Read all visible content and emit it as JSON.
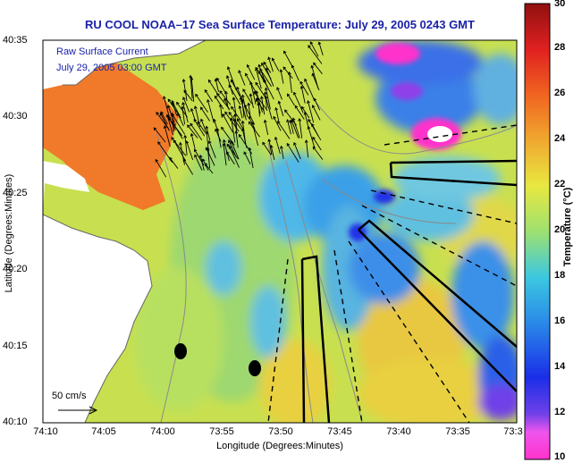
{
  "title": "RU COOL  NOAA–17  Sea Surface Temperature:  July 29, 2005 0243 GMT",
  "legend": {
    "line1": "Raw Surface Current",
    "line2": "July 29, 2005 03:00 GMT"
  },
  "axes": {
    "ylabel": "Latitude (Degrees:Minutes)",
    "xlabel": "Longitude (Degrees:Minutes)",
    "yticks": [
      "40:35",
      "40:30",
      "40:25",
      "40:20",
      "40:15",
      "40:10"
    ],
    "xticks": [
      "74:10",
      "74:05",
      "74:00",
      "73:55",
      "73:50",
      "73:45",
      "73:40",
      "73:35",
      "73:3"
    ]
  },
  "colorbar": {
    "label": "Temperature (°C)",
    "ticks": [
      "30",
      "28",
      "26",
      "24",
      "22",
      "20",
      "18",
      "16",
      "14",
      "12",
      "10"
    ],
    "range": [
      10,
      30
    ]
  },
  "scale_label": "50 cm/s",
  "colors": {
    "title": "#1a22a8",
    "land": "#ffffff",
    "warm_water": "#f07a2a",
    "mid_water": "#d6e84a",
    "cool_water": "#4db4e0",
    "cold_water": "#2e3ee0",
    "coldest": "#ff33cc"
  }
}
